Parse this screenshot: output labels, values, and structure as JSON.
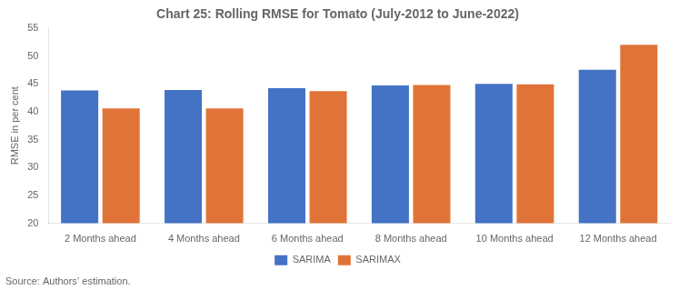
{
  "chart_data": {
    "type": "bar",
    "title": "Chart 25: Rolling RMSE for Tomato (July-2012 to June-2022)",
    "categories": [
      "2 Months ahead",
      "4 Months ahead",
      "6 Months ahead",
      "8 Months ahead",
      "10 Months ahead",
      "12 Months ahead"
    ],
    "series": [
      {
        "name": "SARIMA",
        "color": "#4472C4",
        "values": [
          43.8,
          43.9,
          44.2,
          44.7,
          45.0,
          47.5
        ]
      },
      {
        "name": "SARIMAX",
        "color": "#E07438",
        "values": [
          40.6,
          40.6,
          43.7,
          44.8,
          44.9,
          52.0
        ]
      }
    ],
    "ylabel": "RMSE in per cent",
    "ylim": [
      20,
      55
    ],
    "yticks": [
      20,
      25,
      30,
      35,
      40,
      45,
      50,
      55
    ],
    "grid": false,
    "legend": "bottom",
    "annotations": [
      "Source: Authors’ estimation."
    ]
  }
}
